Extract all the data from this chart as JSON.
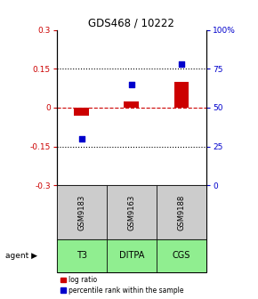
{
  "title": "GDS468 / 10222",
  "samples": [
    "GSM9183",
    "GSM9163",
    "GSM9188"
  ],
  "agents": [
    "T3",
    "DITPA",
    "CGS"
  ],
  "log_ratios": [
    -0.03,
    0.025,
    0.1
  ],
  "percentile_ranks": [
    30,
    65,
    78
  ],
  "ylim_left": [
    -0.3,
    0.3
  ],
  "ylim_right": [
    0,
    100
  ],
  "yticks_left": [
    -0.3,
    -0.15,
    0,
    0.15,
    0.3
  ],
  "yticks_right": [
    0,
    25,
    50,
    75,
    100
  ],
  "ytick_labels_right": [
    "0",
    "25",
    "50",
    "75",
    "100%"
  ],
  "bar_color": "#cc0000",
  "dot_color": "#0000cc",
  "hline_color": "#cc0000",
  "dotline_color": "#000000",
  "agent_bg_color": "#90ee90",
  "sample_bg_color": "#cccccc",
  "bar_width": 0.3,
  "legend_log_ratio": "log ratio",
  "legend_percentile": "percentile rank within the sample"
}
